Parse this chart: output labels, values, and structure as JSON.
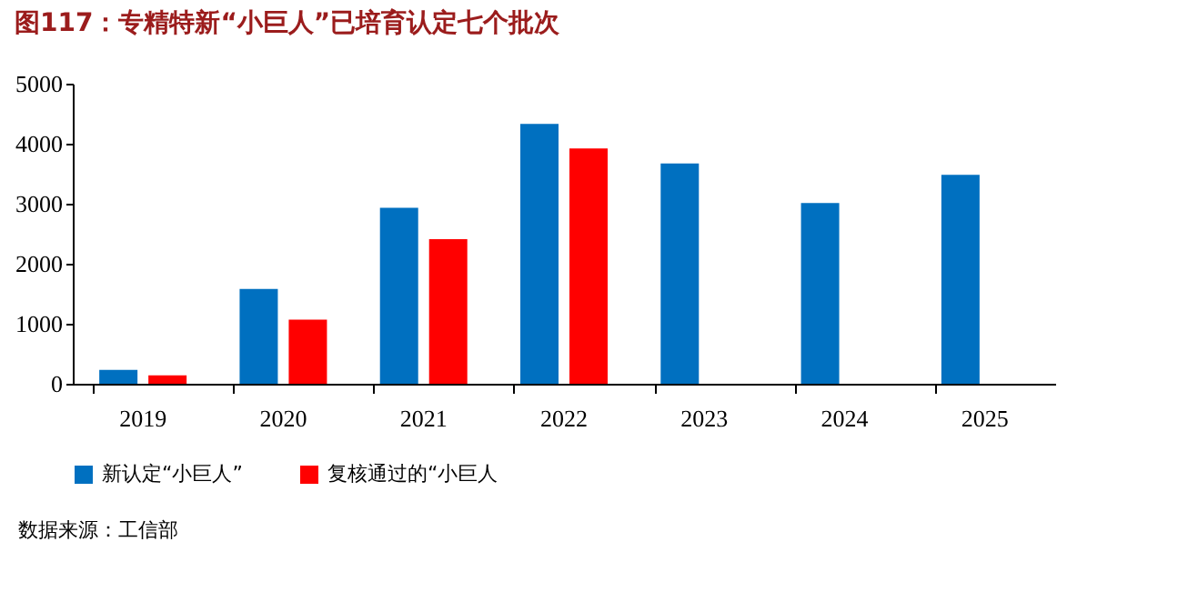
{
  "chart_data": {
    "type": "bar",
    "title": "图117：专精特新“小巨人”已培育认定七个批次",
    "categories": [
      "2019",
      "2020",
      "2021",
      "2022",
      "2023",
      "2024",
      "2025"
    ],
    "series": [
      {
        "name": "新认定“小巨人”",
        "color": "#0070c0",
        "values": [
          230,
          1580,
          2930,
          4330,
          3670,
          3010,
          3480
        ]
      },
      {
        "name": "复核通过的“小巨人",
        "color": "#ff0000",
        "values": [
          140,
          1070,
          2410,
          3920,
          null,
          null,
          null
        ]
      }
    ],
    "ylim": [
      0,
      5000
    ],
    "yticks": [
      0,
      1000,
      2000,
      3000,
      4000,
      5000
    ],
    "grid": false,
    "legend": "bottom",
    "annotations": [
      "数据来源：工信部"
    ]
  }
}
